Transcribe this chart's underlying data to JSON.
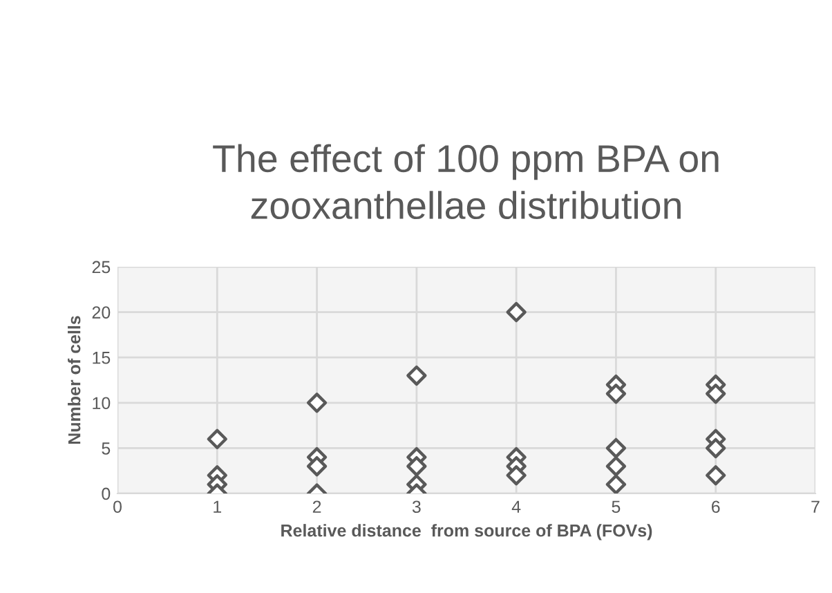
{
  "chart_data": {
    "type": "scatter",
    "title": "The effect of 100 ppm BPA on\nzooxanthellae distribution",
    "xlabel": "Relative distance  from source of BPA (FOVs)",
    "ylabel": "Number of cells",
    "x": [
      1,
      1,
      1,
      1,
      2,
      2,
      2,
      2,
      3,
      3,
      3,
      3,
      3,
      4,
      4,
      4,
      4,
      5,
      5,
      5,
      5,
      5,
      6,
      6,
      6,
      6,
      6
    ],
    "series": [
      {
        "color": "#595959",
        "values": [
          6,
          2,
          1,
          0,
          10,
          4,
          3,
          0,
          13,
          4,
          3,
          1,
          0,
          20,
          4,
          3,
          2,
          12,
          11,
          5,
          3,
          1,
          12,
          11,
          6,
          5,
          2
        ]
      }
    ],
    "xlim": [
      0,
      7
    ],
    "xticks": [
      0,
      1,
      2,
      3,
      4,
      5,
      6,
      7
    ],
    "ylim": [
      0,
      25
    ],
    "yticks": [
      0,
      5,
      10,
      15,
      20,
      25
    ],
    "grid": true,
    "marker": "diamond"
  }
}
